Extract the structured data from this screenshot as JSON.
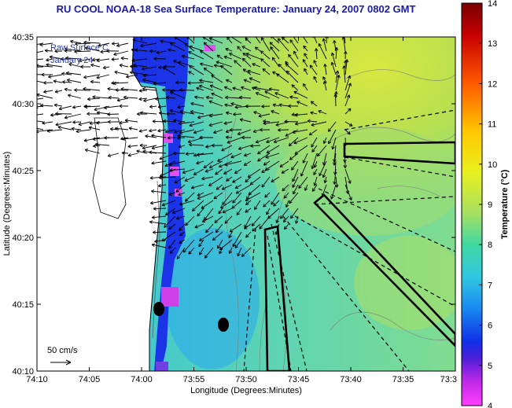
{
  "title": "RU COOL  NOAA-18  Sea Surface Temperature:  January 24, 2007 0802 GMT",
  "overlay": {
    "line1": "Raw Surface C",
    "line2": "January 24"
  },
  "axes": {
    "xlabel": "Longitude (Degrees:Minutes)",
    "ylabel": "Latitude (Degrees:Minutes)",
    "x_ticks": [
      "74:10",
      "74:05",
      "74:00",
      "73:55",
      "73:50",
      "73:45",
      "73:40",
      "73:35",
      "73:3"
    ],
    "y_ticks": [
      "40:35",
      "40:30",
      "40:25",
      "40:20",
      "40:15",
      "40:10"
    ]
  },
  "scale": {
    "label": "50 cm/s"
  },
  "colorbar": {
    "label": "Temperature (°C)",
    "ticks": [
      "14",
      "13",
      "12",
      "11",
      "10",
      "9",
      "8",
      "7",
      "6",
      "5",
      "4"
    ],
    "min": 4,
    "max": 14
  },
  "colors": {
    "title": "#1a1aa6",
    "ocean_base": "#3fc8d8",
    "warm": "#c8e048",
    "cold": "#2020e0",
    "land": "#ffffff"
  }
}
